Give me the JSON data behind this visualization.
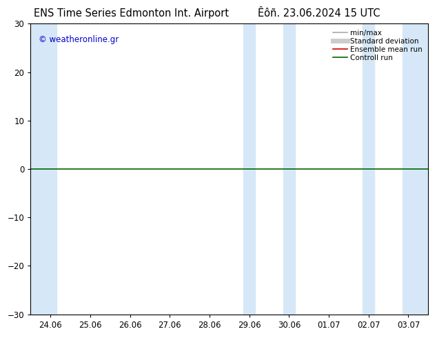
{
  "title_left": "ENS Time Series Edmonton Int. Airport",
  "title_right": "Êôñ. 23.06.2024 15 UTC",
  "watermark": "© weatheronline.gr",
  "ylim": [
    -30,
    30
  ],
  "yticks": [
    -30,
    -20,
    -10,
    0,
    10,
    20,
    30
  ],
  "x_labels": [
    "24.06",
    "25.06",
    "26.06",
    "27.06",
    "28.06",
    "29.06",
    "30.06",
    "01.07",
    "02.07",
    "03.07"
  ],
  "x_positions": [
    0,
    1,
    2,
    3,
    4,
    5,
    6,
    7,
    8,
    9
  ],
  "xlim": [
    -0.5,
    9.5
  ],
  "shaded_bands": [
    {
      "xmin": -0.5,
      "xmax": 0.15
    },
    {
      "xmin": 4.85,
      "xmax": 5.15
    },
    {
      "xmin": 5.85,
      "xmax": 6.15
    },
    {
      "xmin": 7.85,
      "xmax": 8.15
    },
    {
      "xmin": 8.85,
      "xmax": 9.5
    }
  ],
  "hline_y": 0,
  "hline_color": "#006600",
  "hline_lw": 1.2,
  "background_color": "#ffffff",
  "shade_color": "#d6e8f7",
  "legend_entries": [
    {
      "label": "min/max",
      "color": "#aaaaaa",
      "lw": 1.2
    },
    {
      "label": "Standard deviation",
      "color": "#cccccc",
      "lw": 5
    },
    {
      "label": "Ensemble mean run",
      "color": "#cc0000",
      "lw": 1.2
    },
    {
      "label": "Controll run",
      "color": "#006600",
      "lw": 1.2
    }
  ],
  "title_fontsize": 10.5,
  "tick_fontsize": 8.5,
  "watermark_color": "#0000cc",
  "watermark_fontsize": 8.5,
  "legend_fontsize": 7.5
}
